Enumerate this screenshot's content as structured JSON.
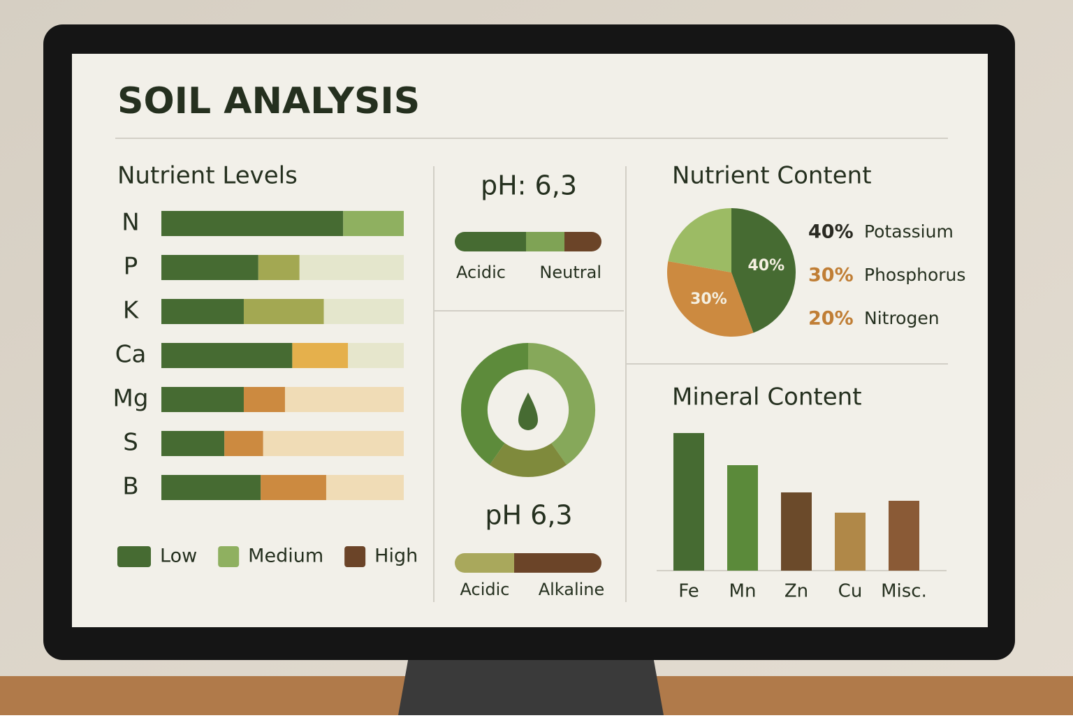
{
  "header": {
    "title": "SOIL ANALYSIS"
  },
  "nutrient_levels": {
    "type": "stacked_bar",
    "title": "Nutrient Levels",
    "xlim": [
      0,
      100
    ],
    "rows": [
      {
        "label": "N",
        "segments": [
          {
            "value": 75,
            "color": "#466b32"
          },
          {
            "value": 25,
            "color": "#8fb060"
          }
        ]
      },
      {
        "label": "P",
        "segments": [
          {
            "value": 40,
            "color": "#466b32"
          },
          {
            "value": 17,
            "color": "#a3a852"
          },
          {
            "value": 43,
            "color": "#e4e6cc"
          }
        ]
      },
      {
        "label": "K",
        "segments": [
          {
            "value": 34,
            "color": "#466b32"
          },
          {
            "value": 33,
            "color": "#a3a852"
          },
          {
            "value": 33,
            "color": "#e4e6cc"
          }
        ]
      },
      {
        "label": "Ca",
        "segments": [
          {
            "value": 54,
            "color": "#466b32"
          },
          {
            "value": 23,
            "color": "#e5b04c"
          },
          {
            "value": 23,
            "color": "#e6e6cc"
          }
        ]
      },
      {
        "label": "Mg",
        "segments": [
          {
            "value": 34,
            "color": "#466b32"
          },
          {
            "value": 17,
            "color": "#cc8a40"
          },
          {
            "value": 49,
            "color": "#f0dcb6"
          }
        ]
      },
      {
        "label": "S",
        "segments": [
          {
            "value": 26,
            "color": "#466b32"
          },
          {
            "value": 16,
            "color": "#cc8a40"
          },
          {
            "value": 58,
            "color": "#f0dcb6"
          }
        ]
      },
      {
        "label": "B",
        "segments": [
          {
            "value": 41,
            "color": "#466b32"
          },
          {
            "value": 27,
            "color": "#cc8a40"
          },
          {
            "value": 32,
            "color": "#f0dcb6"
          }
        ]
      }
    ],
    "legend": [
      {
        "name": "Low",
        "color": "#466b32"
      },
      {
        "name": "Medium",
        "color": "#8fb060"
      },
      {
        "name": "High",
        "color": "#6b4428"
      }
    ]
  },
  "ph_scale": {
    "title": "pH: 6,3",
    "labels": [
      "Acidic",
      "Neutral"
    ]
  },
  "ph_gauge": {
    "title": "pH 6,3",
    "labels": [
      "Acidic",
      "Alkaline"
    ]
  },
  "nutrient_content": {
    "type": "pie",
    "title": "Nutrient Content",
    "series": [
      {
        "name": "Potassium",
        "value": 40,
        "value_label": "40%",
        "slice_label": "40%",
        "color": "#466b32",
        "label_color": "#2a2a22"
      },
      {
        "name": "Phosphorus",
        "value": 30,
        "value_label": "30%",
        "slice_label": "30%",
        "color": "#cc8a40",
        "label_color": "#c07e35"
      },
      {
        "name": "Nitrogen",
        "value": 20,
        "value_label": "20%",
        "slice_label": null,
        "color": "#9cbb64",
        "label_color": "#c07e35"
      }
    ]
  },
  "mineral_content": {
    "type": "bar",
    "title": "Mineral Content",
    "categories": [
      "Fe",
      "Mn",
      "Zn",
      "Cu",
      "Misc."
    ],
    "values": [
      197,
      151,
      112,
      83,
      100
    ],
    "colors": [
      "#466b32",
      "#5b8a3a",
      "#6b4a2a",
      "#b08848",
      "#8a5a36"
    ]
  }
}
